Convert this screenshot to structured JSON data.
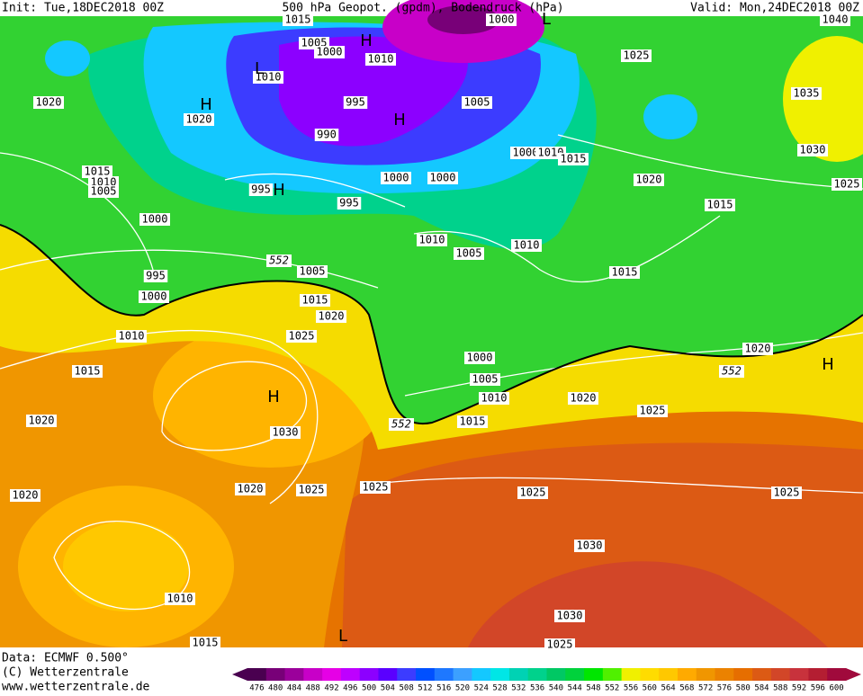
{
  "header": {
    "init": "Init: Tue,18DEC2018 00Z",
    "title": "500 hPa Geopot. (gpdm), Bodendruck (hPa)",
    "valid": "Valid: Mon,24DEC2018 00Z"
  },
  "map": {
    "isobar_labels": [
      1015,
      1000,
      1040,
      1005,
      1000,
      1010,
      1010,
      1025,
      1020,
      1020,
      995,
      1005,
      1035,
      990,
      1030,
      1000,
      1010,
      1015,
      1015,
      1010,
      1005,
      995,
      1000,
      1000,
      995,
      1020,
      1025,
      1015,
      1000,
      1010,
      1010,
      1005,
      1015,
      995,
      1005,
      1000,
      1015,
      1020,
      1010,
      1025,
      1020,
      1015,
      1000,
      1005,
      1010,
      1020,
      1025,
      1015,
      1020,
      1030,
      1020,
      1020,
      1025,
      1025,
      1025,
      1025,
      1030,
      1010,
      1030,
      1015,
      1025
    ],
    "geopotential_labels": [
      552,
      552,
      552
    ],
    "pressure_centers": [
      "H",
      "H",
      "H",
      "H",
      "H",
      "H",
      "L",
      "L",
      "L"
    ]
  },
  "footer": {
    "data": "Data: ECMWF  0.500°",
    "copyright": "(C) Wetterzentrale",
    "url": "www.wetterzentrale.de"
  },
  "colorbar": {
    "labels": [
      476,
      480,
      484,
      488,
      492,
      496,
      500,
      504,
      508,
      512,
      516,
      520,
      524,
      528,
      532,
      536,
      540,
      544,
      548,
      552,
      556,
      560,
      564,
      568,
      572,
      576,
      580,
      584,
      588,
      592,
      596,
      600
    ]
  }
}
